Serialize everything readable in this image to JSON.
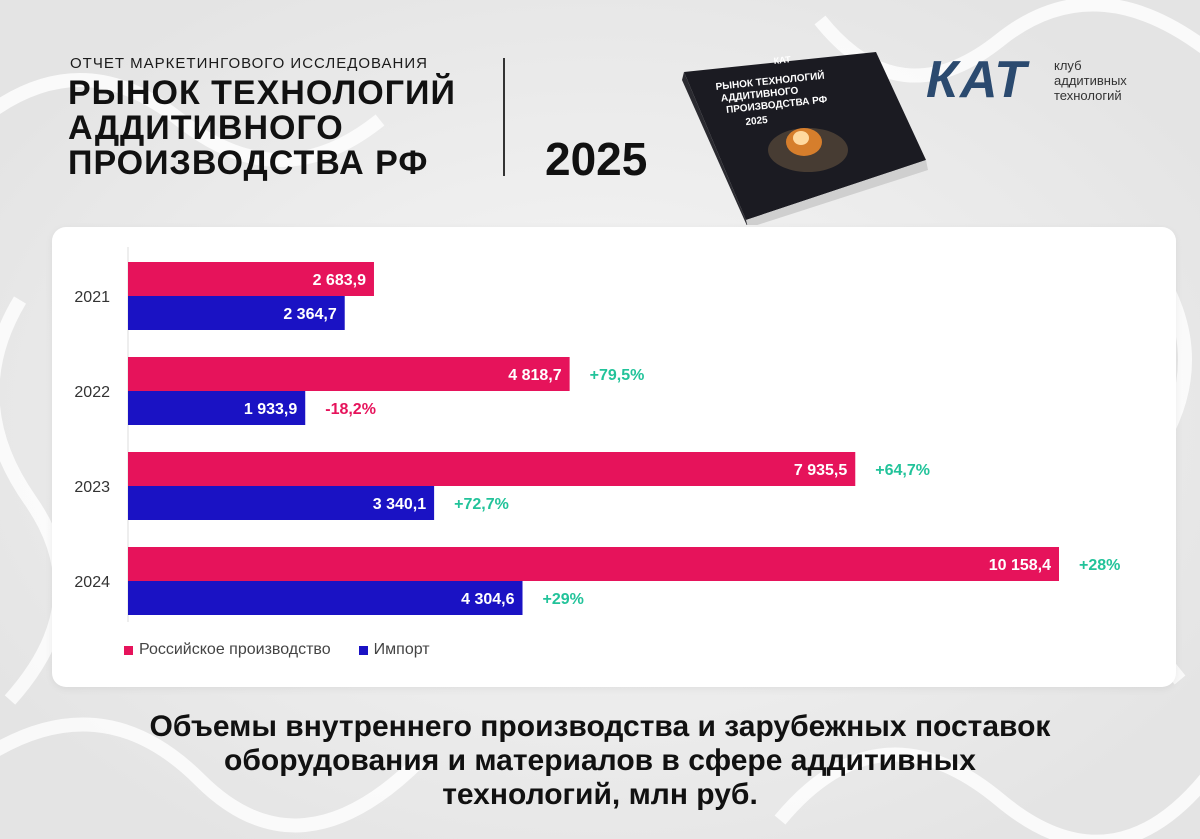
{
  "header": {
    "subtitle": "ОТЧЕТ МАРКЕТИНГОВОГО ИССЛЕДОВАНИЯ",
    "title_lines": [
      "РЫНОК ТЕХНОЛОГИЙ",
      "АДДИТИВНОГО",
      "ПРОИЗВОДСТВА РФ"
    ],
    "year": "2025"
  },
  "book": {
    "brand": "КАТ",
    "title_lines": [
      "РЫНОК ТЕХНОЛОГИЙ",
      "АДДИТИВНОГО",
      "ПРОИЗВОДСТВА РФ"
    ],
    "year": "2025"
  },
  "logo": {
    "mark": "КАТ",
    "text_lines": [
      "клуб",
      "аддитивных",
      "технологий"
    ]
  },
  "colors": {
    "russian": "#e6135b",
    "import": "#1a12c4",
    "positive": "#22c39a",
    "negative": "#e6135b"
  },
  "chart_data": {
    "type": "bar",
    "orientation": "horizontal",
    "categories": [
      "2021",
      "2022",
      "2023",
      "2024"
    ],
    "series": [
      {
        "name": "Российское производство",
        "values": [
          2683.9,
          4818.7,
          7935.5,
          10158.4
        ],
        "labels": [
          "2 683,9",
          "4 818,7",
          "7 935,5",
          "10 158,4"
        ],
        "changes": [
          "",
          "+79,5%",
          "+64,7%",
          "+28%"
        ]
      },
      {
        "name": "Импорт",
        "values": [
          2364.7,
          1933.9,
          3340.1,
          4304.6
        ],
        "labels": [
          "2 364,7",
          "1 933,9",
          "3 340,1",
          "4 304,6"
        ],
        "changes": [
          "",
          "-18,2%",
          "+72,7%",
          "+29%"
        ]
      }
    ],
    "xlim": [
      0,
      10158.4
    ],
    "grid": false,
    "legend_position": "bottom-left",
    "title": "Объемы внутреннего производства и зарубежных поставок оборудования и материалов в сфере аддитивных технологий, млн руб."
  },
  "caption_lines": [
    "Объемы внутреннего производства и зарубежных поставок",
    "оборудования и материалов в сфере аддитивных",
    "технологий, млн руб."
  ]
}
